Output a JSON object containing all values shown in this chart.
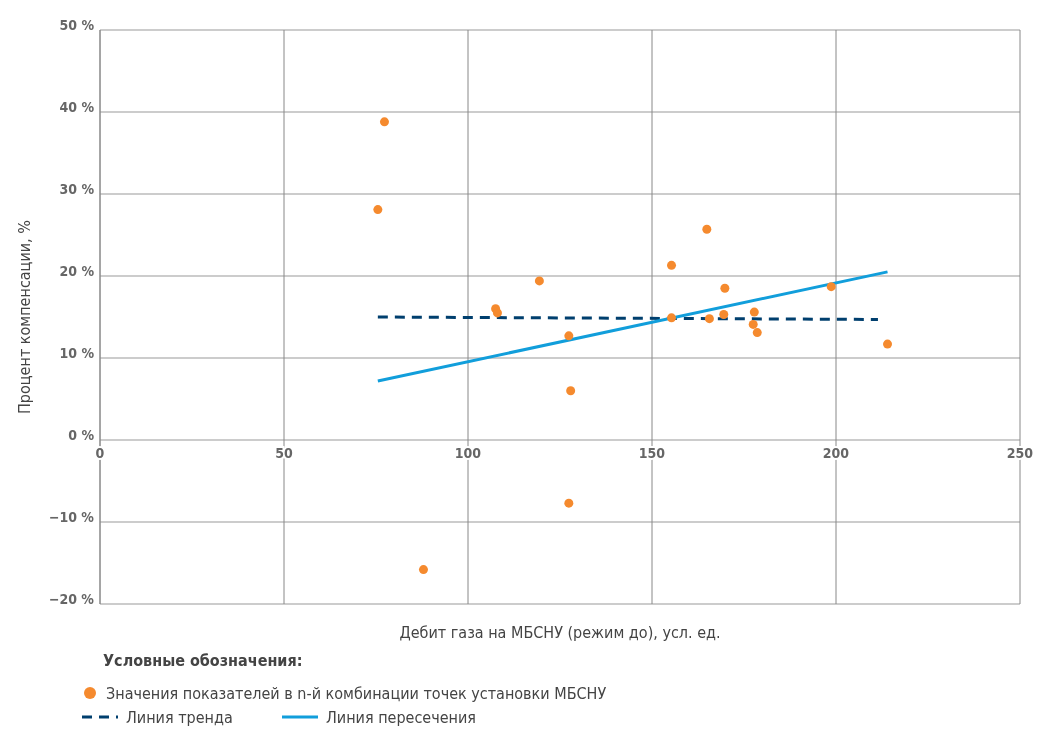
{
  "chart_data": {
    "type": "scatter",
    "xlabel": "Дебит газа на МБСНУ (режим  до), усл. ед.",
    "ylabel": "Процент компенсации, %",
    "legend_title": "Условные обозначения:",
    "legend": "bottom",
    "grid": true,
    "xlim": [
      0,
      250
    ],
    "xticks": [
      0,
      50,
      100,
      150,
      200,
      250
    ],
    "ylim": [
      -20,
      50
    ],
    "yticks": [
      {
        "value": -20,
        "label": "−20 %"
      },
      {
        "value": -10,
        "label": "−10 %"
      },
      {
        "value": 0,
        "label": "0 %"
      },
      {
        "value": 10,
        "label": "10 %"
      },
      {
        "value": 20,
        "label": "20 %"
      },
      {
        "value": 30,
        "label": "30 %"
      },
      {
        "value": 40,
        "label": "40 %"
      },
      {
        "value": 50,
        "label": "50 %"
      }
    ],
    "series": [
      {
        "name": "Значения показателей в n-й комбинации точек установки МБСНУ",
        "marker": "circle",
        "color": "#f58a2e",
        "x": [
          75.5,
          77.3,
          87.9,
          107.5,
          108,
          119.4,
          127.4,
          127.9,
          127.4,
          155.3,
          155.3,
          164.9,
          165.6,
          169.8,
          169.5,
          177.8,
          177.5,
          178.6,
          198.7,
          214
        ],
        "values": [
          28.1,
          38.8,
          -15.8,
          16,
          15.5,
          19.4,
          12.7,
          6,
          -7.7,
          21.3,
          14.9,
          25.7,
          14.8,
          18.5,
          15.3,
          15.6,
          14.1,
          13.1,
          18.7,
          11.7
        ]
      },
      {
        "name": "Линия тренда",
        "type": "line",
        "line_style": "dashed",
        "color": "#003f6e",
        "x": [
          75.5,
          211.4
        ],
        "values": [
          15,
          14.7
        ]
      },
      {
        "name": "Линия пересечения",
        "type": "line",
        "line_style": "solid",
        "color": "#119edb",
        "x": [
          75.5,
          214
        ],
        "values": [
          7.2,
          20.5
        ]
      }
    ]
  }
}
